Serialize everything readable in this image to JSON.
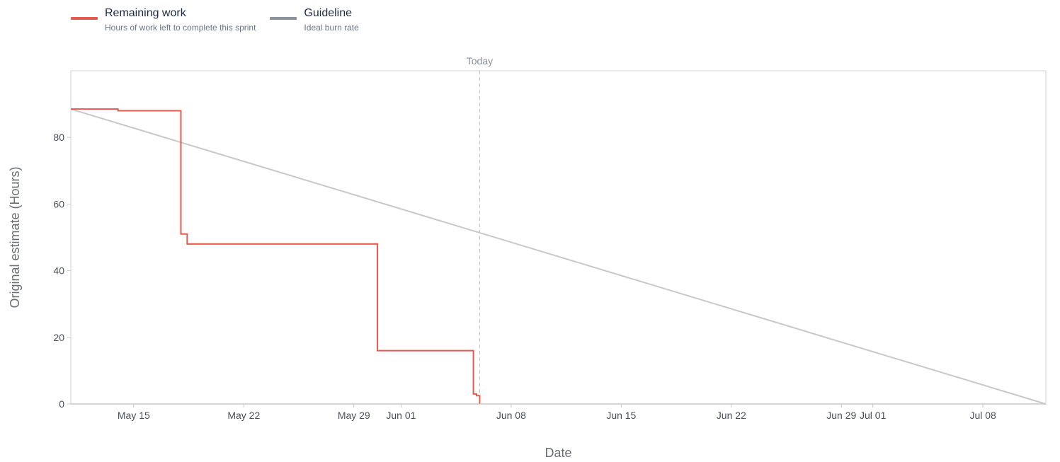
{
  "legend": [
    {
      "name": "Remaining work",
      "description": "Hours of work left to complete this sprint",
      "color": "#e55a4e"
    },
    {
      "name": "Guideline",
      "description": "Ideal burn rate",
      "color": "#8c929c"
    }
  ],
  "chart_data": {
    "type": "line",
    "xlabel": "Date",
    "ylabel": "Original estimate (Hours)",
    "xlim": [
      "2024-05-11",
      "2024-07-12"
    ],
    "ylim": [
      0,
      100
    ],
    "y_ticks": [
      0,
      20,
      40,
      60,
      80
    ],
    "x_ticks": [
      {
        "date": "2024-05-15",
        "label": "May 15"
      },
      {
        "date": "2024-05-22",
        "label": "May 22"
      },
      {
        "date": "2024-05-29",
        "label": "May 29"
      },
      {
        "date": "2024-06-01",
        "label": "Jun 01"
      },
      {
        "date": "2024-06-08",
        "label": "Jun 08"
      },
      {
        "date": "2024-06-15",
        "label": "Jun 15"
      },
      {
        "date": "2024-06-22",
        "label": "Jun 22"
      },
      {
        "date": "2024-06-29",
        "label": "Jun 29"
      },
      {
        "date": "2024-07-01",
        "label": "Jul 01"
      },
      {
        "date": "2024-07-08",
        "label": "Jul 08"
      }
    ],
    "today": {
      "date": "2024-06-06",
      "label": "Today"
    },
    "grid": false,
    "legend_position": "top-left",
    "series": [
      {
        "name": "Remaining work",
        "color": "#e55a4e",
        "step": true,
        "points": [
          {
            "x": "2024-05-11",
            "y": 88.5
          },
          {
            "x": "2024-05-14",
            "y": 88
          },
          {
            "x": "2024-05-18",
            "y": 51
          },
          {
            "x": "2024-05-18.4",
            "y": 48
          },
          {
            "x": "2024-05-30.5",
            "y": 16
          },
          {
            "x": "2024-06-05.6",
            "y": 3
          },
          {
            "x": "2024-06-05.8",
            "y": 2.5
          },
          {
            "x": "2024-06-06",
            "y": 0
          }
        ]
      },
      {
        "name": "Guideline",
        "color": "#c8c8c8",
        "step": false,
        "points": [
          {
            "x": "2024-05-11",
            "y": 88.5
          },
          {
            "x": "2024-07-12",
            "y": 0
          }
        ]
      }
    ]
  }
}
